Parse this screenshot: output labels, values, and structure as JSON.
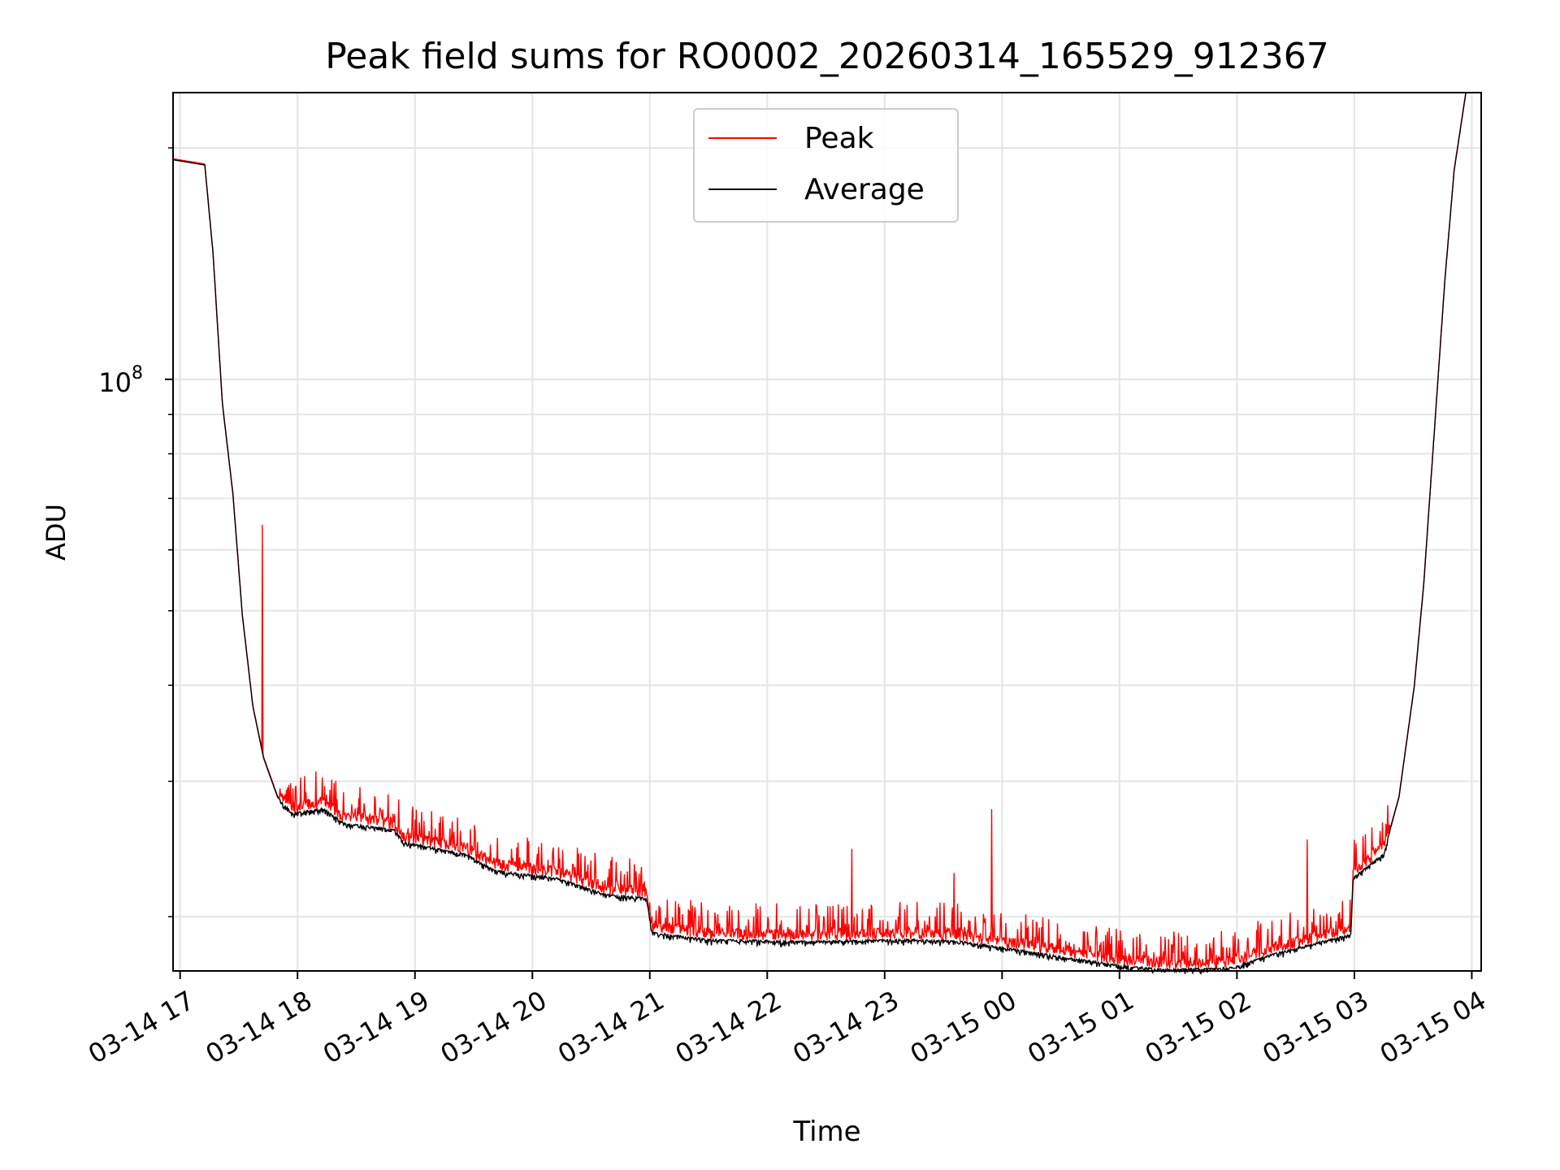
{
  "chart_data": {
    "type": "line",
    "title": "Peak field sums for RO0002_20260314_165529_912367",
    "xlabel": "Time",
    "ylabel": "ADU",
    "yscale": "log",
    "ylim": [
      17000000,
      236000000
    ],
    "xlim_hours_from_0314_0000": [
      16.94,
      28.08
    ],
    "x_ticks": [
      {
        "t": 17,
        "label": "03-14 17"
      },
      {
        "t": 18,
        "label": "03-14 18"
      },
      {
        "t": 19,
        "label": "03-14 19"
      },
      {
        "t": 20,
        "label": "03-14 20"
      },
      {
        "t": 21,
        "label": "03-14 21"
      },
      {
        "t": 22,
        "label": "03-14 22"
      },
      {
        "t": 23,
        "label": "03-14 23"
      },
      {
        "t": 24,
        "label": "03-15 00"
      },
      {
        "t": 25,
        "label": "03-15 01"
      },
      {
        "t": 26,
        "label": "03-15 02"
      },
      {
        "t": 27,
        "label": "03-15 03"
      },
      {
        "t": 28,
        "label": "03-15 04"
      }
    ],
    "y_major_tick": {
      "value": 100000000,
      "base": "10",
      "exp": "8"
    },
    "y_minor_ticks": [
      20000000,
      30000000,
      40000000,
      50000000,
      60000000,
      70000000,
      80000000,
      90000000,
      200000000
    ],
    "grid": true,
    "legend": {
      "placement": "top-center",
      "entries": [
        {
          "name": "Peak",
          "color": "#ff0000"
        },
        {
          "name": "Average",
          "color": "#000000"
        }
      ]
    },
    "series": [
      {
        "name": "Average",
        "color": "#000000",
        "t": [
          16.94,
          17.21,
          17.28,
          17.36,
          17.45,
          17.53,
          17.62,
          17.71,
          17.83,
          17.96,
          18.22,
          18.39,
          18.82,
          18.91,
          19.42,
          19.68,
          20.2,
          20.63,
          20.97,
          21.02,
          21.49,
          22.35,
          23.21,
          23.64,
          24.07,
          24.58,
          25.01,
          25.44,
          25.96,
          26.3,
          26.97,
          26.99,
          27.25,
          27.38,
          27.51,
          27.59,
          27.68,
          27.77,
          27.85,
          27.95
        ],
        "values": [
          193000000,
          190000000,
          146000000,
          93000000,
          70800000,
          49300000,
          37500000,
          32200000,
          28600000,
          27300000,
          27700000,
          26500000,
          26000000,
          25000000,
          24200000,
          23000000,
          22500000,
          21400000,
          21200000,
          19100000,
          18700000,
          18600000,
          18700000,
          18600000,
          18200000,
          17700000,
          17300000,
          17100000,
          17200000,
          17900000,
          19000000,
          22500000,
          24200000,
          28600000,
          39800000,
          53900000,
          85000000,
          134000000,
          187000000,
          236000000
        ]
      },
      {
        "name": "Peak",
        "color": "#ff0000",
        "follows": "Average",
        "typical_excess_ratio": 1.06,
        "spikes": [
          {
            "t": 17.7,
            "value": 64700000
          },
          {
            "t": 22.72,
            "value": 24500000
          },
          {
            "t": 23.59,
            "value": 22800000
          },
          {
            "t": 23.91,
            "value": 27600000
          },
          {
            "t": 26.6,
            "value": 25200000
          }
        ]
      }
    ]
  }
}
